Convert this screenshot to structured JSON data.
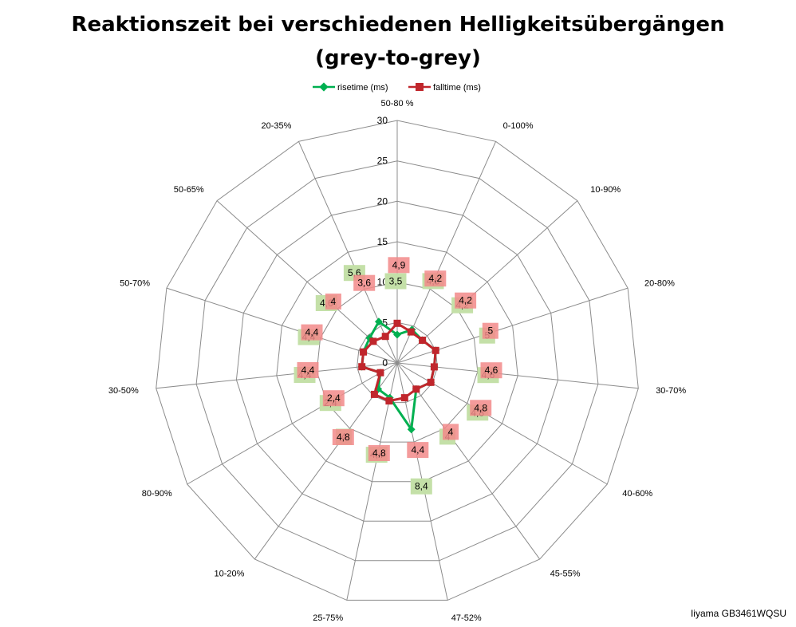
{
  "chart_data": {
    "type": "radar",
    "title_lines": [
      "Reaktionszeit bei verschiedenen Helligkeitsübergängen",
      "(grey-to-grey)"
    ],
    "categories": [
      "50-80 %",
      "0-100%",
      "10-90%",
      "20-80%",
      "30-70%",
      "40-60%",
      "45-55%",
      "47-52%",
      "25-75%",
      "10-20%",
      "80-90%",
      "30-50%",
      "50-70%",
      "50-65%",
      "20-35%"
    ],
    "rlim": [
      0,
      30
    ],
    "rticks": [
      0,
      5,
      10,
      15,
      20,
      25,
      30
    ],
    "grid": true,
    "legend_position": "top",
    "series": [
      {
        "name": "risetime (ms)",
        "color": "#00b050",
        "label_bg": "#c4e0a8",
        "values": [
          3.5,
          4.5,
          4.2,
          5.0,
          4.6,
          4.8,
          4.0,
          8.4,
          4.4,
          4.0,
          2.4,
          4.4,
          4.4,
          4.6,
          5.6
        ],
        "labels": [
          "3,5",
          "4,5",
          "4,2",
          "5",
          "4,6",
          "4,8",
          "4",
          "8,4",
          "4,4",
          "4",
          "2,4",
          "4,4",
          "4,4",
          "4,6",
          "5,6"
        ]
      },
      {
        "name": "falltime (ms)",
        "color": "#c0262c",
        "label_bg": "#f28a8a",
        "values": [
          4.9,
          4.2,
          4.2,
          5.0,
          4.6,
          4.8,
          4.0,
          4.4,
          4.8,
          4.8,
          2.4,
          4.4,
          4.4,
          4.0,
          3.6
        ],
        "labels": [
          "4,9",
          "4,2",
          "4,2",
          "5",
          "4,6",
          "4,8",
          "4",
          "4,4",
          "4,8",
          "4,8",
          "2,4",
          "4,4",
          "4,4",
          "4",
          "3,6"
        ]
      }
    ]
  },
  "source_note": "Iiyama GB3461WQSU"
}
